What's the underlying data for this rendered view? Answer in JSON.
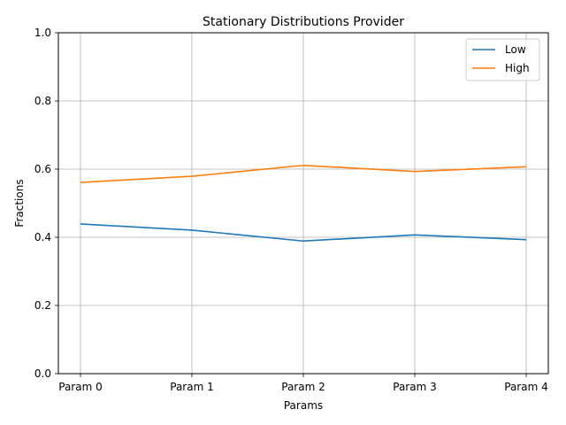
{
  "chart_data": {
    "type": "line",
    "title": "Stationary Distributions Provider",
    "xlabel": "Params",
    "ylabel": "Fractions",
    "categories": [
      "Param 0",
      "Param 1",
      "Param 2",
      "Param 3",
      "Param 4"
    ],
    "ylim": [
      0,
      1
    ],
    "yticks": [
      0.0,
      0.2,
      0.4,
      0.6,
      0.8,
      1.0
    ],
    "ytick_labels": [
      "0.0",
      "0.2",
      "0.4",
      "0.6",
      "0.8",
      "1.0"
    ],
    "grid": true,
    "legend_position": "top-right",
    "series": [
      {
        "name": "Low",
        "color": "#1f77b4",
        "values": [
          0.439,
          0.421,
          0.389,
          0.407,
          0.393
        ]
      },
      {
        "name": "High",
        "color": "#ff7f0e",
        "values": [
          0.561,
          0.579,
          0.611,
          0.593,
          0.607
        ]
      }
    ]
  }
}
